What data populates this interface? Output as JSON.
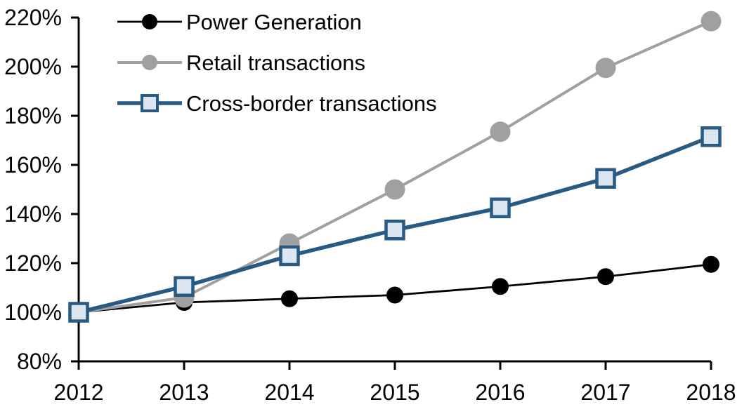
{
  "chart_data": {
    "type": "line",
    "title": "",
    "xlabel": "",
    "ylabel": "",
    "grid": false,
    "legend_position": "top-left-inside",
    "categories": [
      "2012",
      "2013",
      "2014",
      "2015",
      "2016",
      "2017",
      "2018"
    ],
    "x_tick_labels": [
      "2012",
      "2013",
      "2014",
      "2015",
      "2016",
      "2017",
      "2018"
    ],
    "y_tick_labels": [
      "220%",
      "200%",
      "180%",
      "160%",
      "140%",
      "120%",
      "100%",
      "80%"
    ],
    "y_axis": {
      "min": 80,
      "max": 220,
      "step": 20,
      "suffix": "%"
    },
    "axis_color": "#000000",
    "series": [
      {
        "name": "Power Generation",
        "color": "#000000",
        "line_width": 2.8,
        "marker": "circle",
        "marker_fill": "#000000",
        "marker_stroke": "none",
        "marker_size": 24,
        "values": [
          100,
          104,
          105.5,
          107,
          110.5,
          114.5,
          119.5
        ]
      },
      {
        "name": "Retail transactions",
        "color": "#A0A0A0",
        "line_width": 4,
        "marker": "circle",
        "marker_fill": "#A0A0A0",
        "marker_stroke": "none",
        "marker_size": 29,
        "values": [
          100,
          106,
          128,
          150,
          173.5,
          199.5,
          218.5
        ]
      },
      {
        "name": "Cross-border transactions",
        "color": "#295A84",
        "line_width": 5.5,
        "marker": "square",
        "marker_fill": "#DCE6F1",
        "marker_stroke": "#295A84",
        "marker_size": 25,
        "marker_stroke_width": 4.5,
        "values": [
          100,
          110.5,
          123,
          133.5,
          142.5,
          154.5,
          171.5
        ]
      }
    ]
  }
}
